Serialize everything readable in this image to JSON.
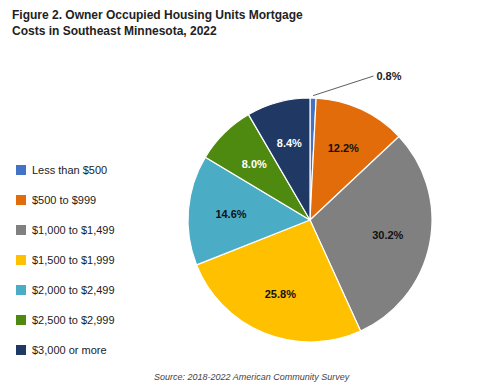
{
  "chart_data": {
    "type": "pie",
    "title": "Figure 2. Owner Occupied Housing Units Mortgage\nCosts in Southeast Minnesota, 2022",
    "categories": [
      "Less than $500",
      "$500 to $999",
      "$1,000 to $1,499",
      "$1,500 to $1,999",
      "$2,000 to $2,499",
      "$2,500 to $2,999",
      "$3,000 or more"
    ],
    "values": [
      0.8,
      12.2,
      30.2,
      25.8,
      14.6,
      8.0,
      8.4
    ],
    "value_labels": [
      "0.8%",
      "12.2%",
      "30.2%",
      "25.8%",
      "14.6%",
      "8.0%",
      "8.4%"
    ],
    "colors": [
      "#4472C4",
      "#E36C0A",
      "#808080",
      "#FFC000",
      "#4BACC6",
      "#4F8A10",
      "#1F3864"
    ],
    "data_labels": true,
    "legend": "left",
    "annotations": [
      "Source: 2018-2022 American Community Survey"
    ]
  }
}
